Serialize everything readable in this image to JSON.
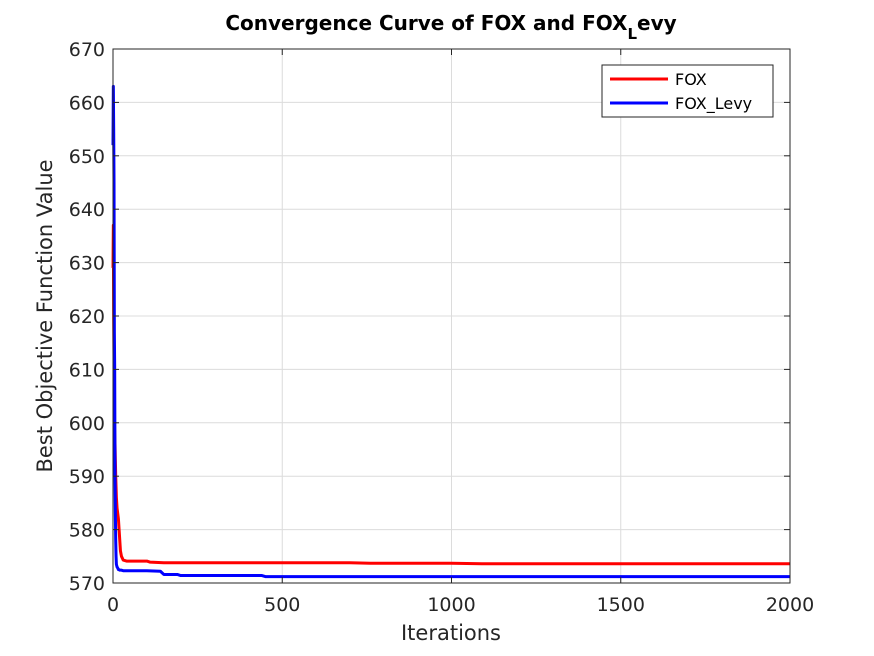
{
  "chart_data": {
    "type": "line",
    "title_main": "Convergence Curve of FOX and FOX",
    "title_sub": "L",
    "title_tail": "evy",
    "xlabel": "Iterations",
    "ylabel": "Best Objective Function Value",
    "xlim": [
      0,
      2000
    ],
    "ylim": [
      570,
      670
    ],
    "xticks": [
      0,
      500,
      1000,
      1500,
      2000
    ],
    "yticks": [
      570,
      580,
      590,
      600,
      610,
      620,
      630,
      640,
      650,
      660,
      670
    ],
    "grid": true,
    "legend_position": "top-right",
    "series": [
      {
        "name": "FOX",
        "color": "#ff0000",
        "x": [
          0,
          1,
          2,
          3,
          4,
          5,
          6,
          7,
          8,
          9,
          10,
          12,
          14,
          16,
          18,
          20,
          22,
          25,
          28,
          30,
          35,
          40,
          60,
          80,
          100,
          110,
          150,
          300,
          500,
          700,
          760,
          900,
          1000,
          1090,
          1200,
          1500,
          2000
        ],
        "y": [
          629,
          637,
          620,
          612,
          601,
          598,
          596,
          593,
          590,
          588,
          586,
          584,
          583,
          582,
          580,
          578,
          576,
          575,
          574.6,
          574.3,
          574.2,
          574.1,
          574.1,
          574.1,
          574.1,
          573.9,
          573.8,
          573.8,
          573.8,
          573.8,
          573.7,
          573.7,
          573.7,
          573.6,
          573.6,
          573.6,
          573.6
        ]
      },
      {
        "name": "FOX_Levy",
        "color": "#0000ff",
        "x": [
          0,
          1,
          2,
          3,
          4,
          5,
          6,
          7,
          8,
          9,
          10,
          12,
          14,
          16,
          18,
          20,
          25,
          30,
          50,
          100,
          140,
          150,
          190,
          200,
          300,
          440,
          450,
          700,
          1000,
          1500,
          2000
        ],
        "y": [
          652,
          663,
          655,
          645,
          617,
          610,
          590,
          583,
          578,
          575,
          573.5,
          573,
          572.8,
          572.5,
          572.5,
          572.4,
          572.4,
          572.3,
          572.3,
          572.3,
          572.2,
          571.6,
          571.6,
          571.4,
          571.4,
          571.4,
          571.2,
          571.2,
          571.2,
          571.2,
          571.2
        ]
      }
    ]
  }
}
